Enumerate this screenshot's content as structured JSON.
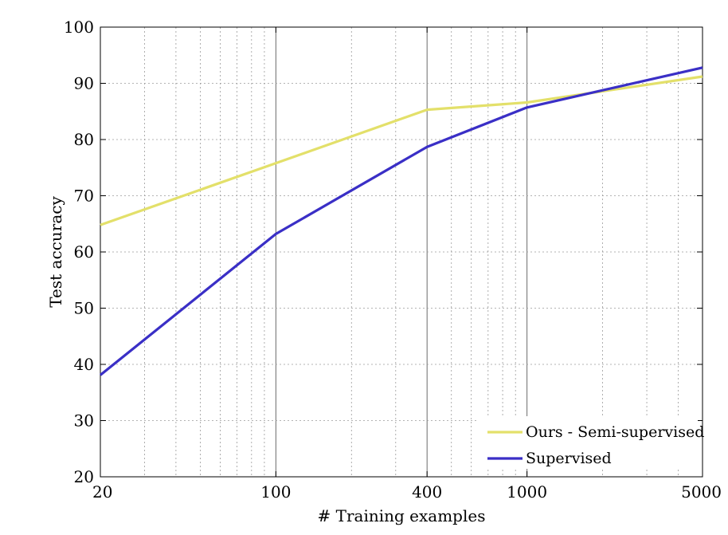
{
  "chart_data": {
    "type": "line",
    "xscale": "log",
    "x_ticks": [
      20,
      100,
      400,
      1000,
      5000
    ],
    "y_ticks": [
      20,
      30,
      40,
      50,
      60,
      70,
      80,
      90,
      100
    ],
    "xlim": [
      20,
      5000
    ],
    "ylim": [
      20,
      100
    ],
    "xlabel": "# Training examples",
    "ylabel": "Test accuracy",
    "grid": true,
    "legend_position": "bottom-right",
    "series": [
      {
        "name": "Ours - Semi-supervised",
        "color": "#e3e06a",
        "x": [
          20,
          100,
          400,
          1000,
          5000
        ],
        "y": [
          64.8,
          75.8,
          85.3,
          86.6,
          91.2
        ]
      },
      {
        "name": "Supervised",
        "color": "#3a2fc6",
        "x": [
          20,
          100,
          400,
          1000,
          5000
        ],
        "y": [
          38.1,
          63.2,
          78.7,
          85.7,
          92.8
        ]
      }
    ]
  }
}
